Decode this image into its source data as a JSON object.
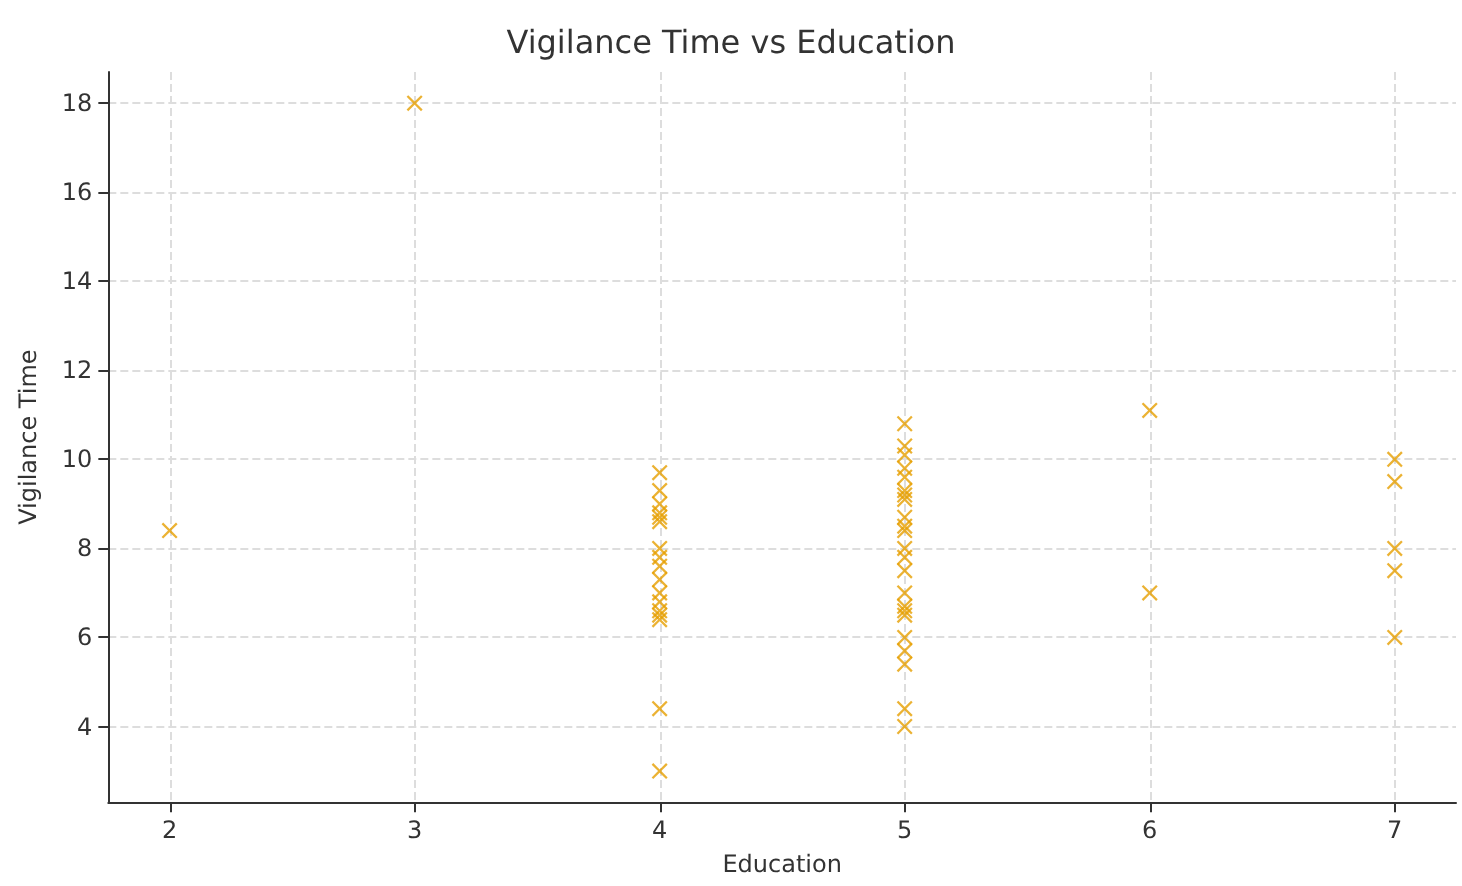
{
  "chart_data": {
    "type": "scatter",
    "title": "Vigilance Time vs Education",
    "xlabel": "Education",
    "ylabel": "Vigilance Time",
    "x": [
      2,
      3,
      4,
      4,
      4,
      4,
      4,
      4,
      4,
      4,
      4,
      4,
      4,
      4,
      4,
      4,
      4,
      4,
      4,
      5,
      5,
      5,
      5,
      5,
      5,
      5,
      5,
      5,
      5,
      5,
      5,
      5,
      5,
      5,
      5,
      5,
      5,
      5,
      5,
      5,
      5,
      5,
      6,
      6,
      7,
      7,
      7,
      7,
      7
    ],
    "values": [
      8.4,
      18,
      9.7,
      9.3,
      9.0,
      8.8,
      8.7,
      8.6,
      8.0,
      7.8,
      7.6,
      7.3,
      7.0,
      6.8,
      6.6,
      6.5,
      6.4,
      4.4,
      3.0,
      10.8,
      10.3,
      10.1,
      9.8,
      9.6,
      9.3,
      9.2,
      9.1,
      8.7,
      8.5,
      8.4,
      8.0,
      7.8,
      7.5,
      7.0,
      6.7,
      6.6,
      6.5,
      6.0,
      5.7,
      5.4,
      4.4,
      4.0,
      11.1,
      7.0,
      10.0,
      9.5,
      8.0,
      7.5,
      6.0
    ],
    "color": "#e69f00",
    "marker": "cross",
    "grid": true,
    "xlim": [
      1.75,
      7.25
    ],
    "xticks": [
      2,
      3,
      4,
      5,
      6,
      7
    ],
    "ylim": [
      2.3,
      18.7
    ],
    "yticks": [
      4,
      6,
      8,
      10,
      12,
      14,
      16,
      18
    ]
  }
}
